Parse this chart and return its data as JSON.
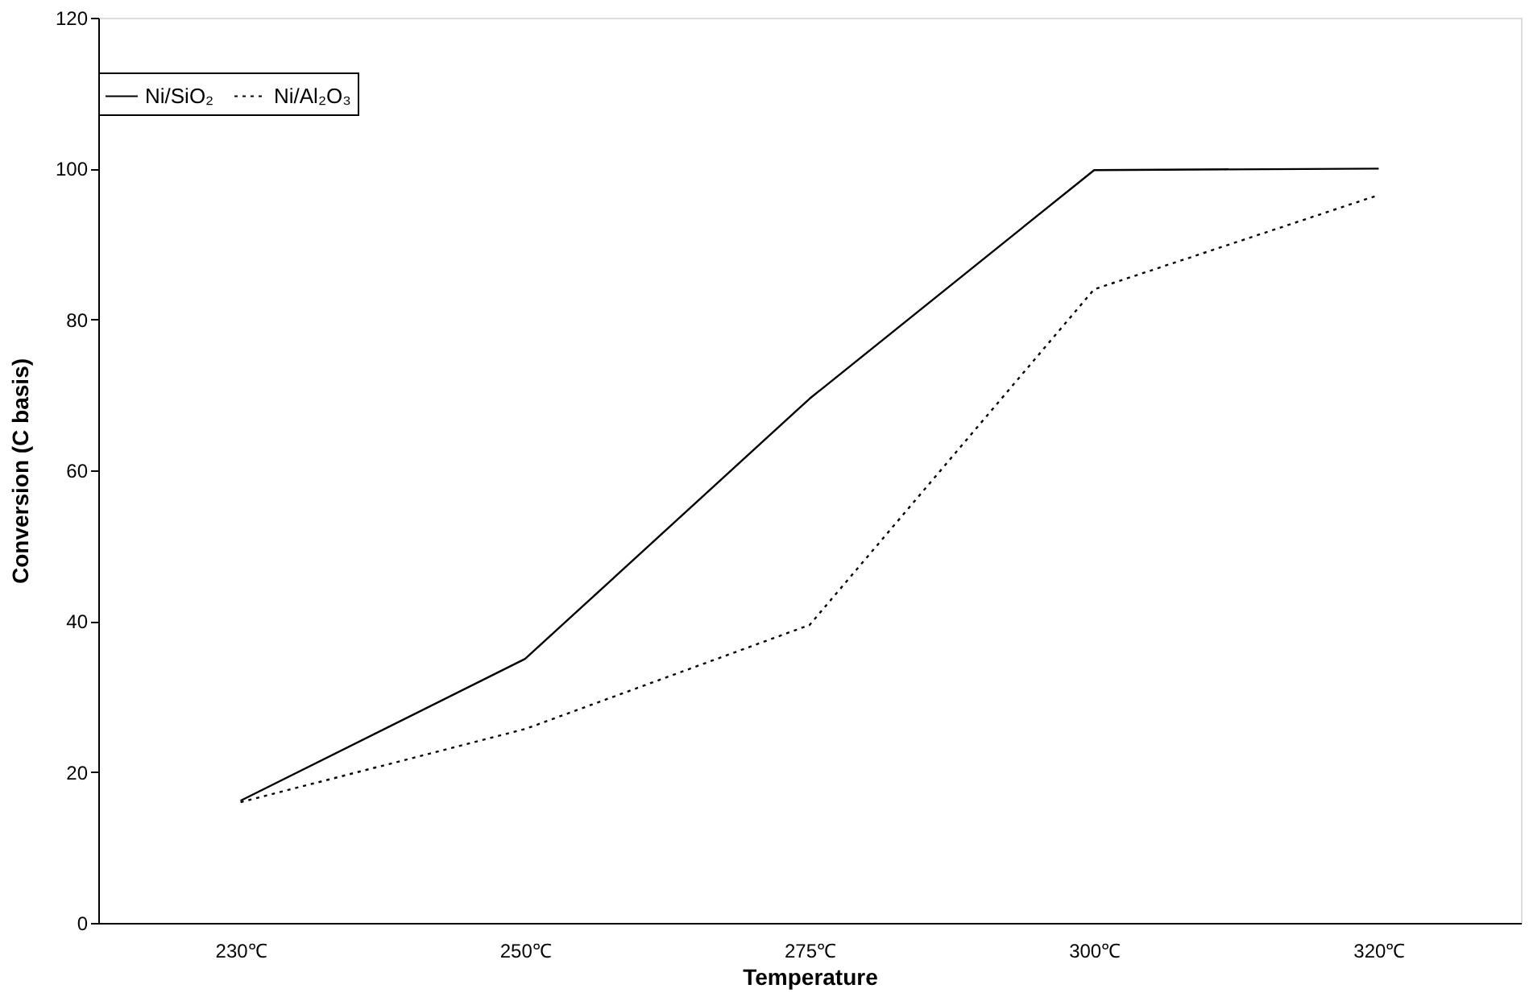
{
  "chart_data": {
    "type": "line",
    "xlabel": "Temperature",
    "ylabel": "Conversion (C basis)",
    "categories": [
      "230℃",
      "250℃",
      "275℃",
      "300℃",
      "320℃"
    ],
    "series": [
      {
        "name": "Ni/SiO₂",
        "color": "#000000",
        "line_style": "solid",
        "values": [
          16.2,
          35,
          69.5,
          99.8,
          100
        ]
      },
      {
        "name": "Ni/Al₂O₃",
        "color": "#000000",
        "line_style": "dotted",
        "values": [
          16,
          25.7,
          39.5,
          84,
          96.5
        ]
      }
    ],
    "ylim": [
      0,
      120
    ],
    "yticks": [
      0,
      20,
      40,
      60,
      80,
      100,
      120
    ],
    "grid": false,
    "legend": "top",
    "marker": "none"
  }
}
